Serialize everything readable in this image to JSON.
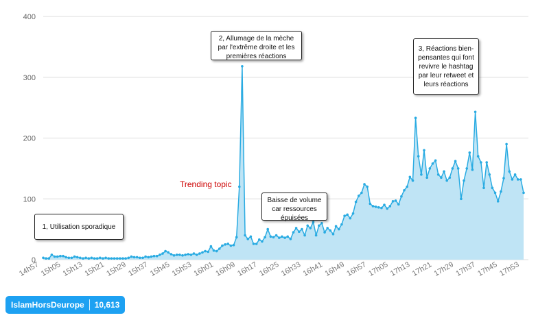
{
  "chart_data": {
    "type": "area",
    "title": "",
    "xlabel": "",
    "ylabel": "",
    "ylim": [
      0,
      400
    ],
    "yticks": [
      0,
      100,
      200,
      300,
      400
    ],
    "grid": true,
    "x_tick_labels": [
      "14h57",
      "15h05",
      "15h13",
      "15h21",
      "15h29",
      "15h37",
      "15h45",
      "15h53",
      "16h01",
      "16h09",
      "16h17",
      "16h25",
      "16h33",
      "16h41",
      "16h49",
      "16h57",
      "17h05",
      "17h13",
      "17h21",
      "17h29",
      "17h37",
      "17h45",
      "17h53"
    ],
    "series": [
      {
        "values": [
          3,
          2,
          2,
          8,
          5,
          5,
          6,
          6,
          4,
          3,
          3,
          5,
          4,
          3,
          2,
          3,
          2,
          3,
          2,
          2,
          3,
          2,
          3,
          2,
          2,
          2,
          2,
          2,
          2,
          2,
          3,
          5,
          4,
          4,
          3,
          3,
          5,
          4,
          5,
          6,
          6,
          8,
          10,
          14,
          12,
          9,
          7,
          8,
          8,
          7,
          8,
          9,
          8,
          10,
          8,
          10,
          12,
          14,
          13,
          22,
          15,
          14,
          18,
          23,
          25,
          26,
          23,
          24,
          37,
          120,
          318,
          40,
          34,
          38,
          26,
          26,
          33,
          30,
          37,
          50,
          38,
          37,
          40,
          36,
          38,
          36,
          38,
          34,
          45,
          52,
          46,
          50,
          40,
          56,
          52,
          62,
          40,
          56,
          60,
          45,
          52,
          48,
          42,
          55,
          50,
          58,
          72,
          74,
          68,
          76,
          95,
          105,
          110,
          124,
          120,
          92,
          88,
          87,
          86,
          85,
          90,
          84,
          88,
          96,
          97,
          91,
          104,
          114,
          120,
          136,
          130,
          233,
          170,
          140,
          180,
          135,
          150,
          158,
          163,
          140,
          135,
          145,
          130,
          135,
          150,
          162,
          150,
          100,
          130,
          150,
          176,
          148,
          243,
          170,
          160,
          118,
          160,
          140,
          118,
          110,
          96,
          112,
          134,
          190,
          145,
          132,
          140,
          132,
          132,
          110
        ]
      }
    ],
    "colors": {
      "line": "#29abe2",
      "fill": "#bfe4f5",
      "grid": "#dcdcdc"
    },
    "annotations": [
      {
        "text": "1, Utilisation sporadique"
      },
      {
        "text": "2, Allumage de la mèche par l'extrême droite et les premières réactions"
      },
      {
        "text": "Baisse de volume car ressources épuisées"
      },
      {
        "text": "3, Réactions bien-pensantes qui font revivre le hashtag par leur retweet et leurs réactions"
      },
      {
        "text": "Trending topic"
      }
    ]
  },
  "badge": {
    "hashtag": "IslamHorsDeurope",
    "count": "10,613"
  }
}
